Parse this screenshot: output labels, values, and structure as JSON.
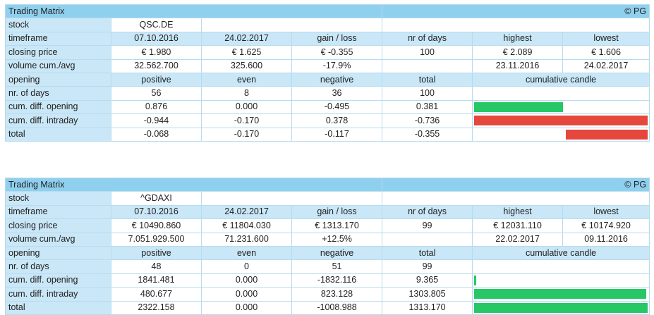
{
  "colors": {
    "header": "#8fd0ef",
    "label_bg": "#c9e7f7",
    "positive": "#27c766",
    "negative": "#e5473c"
  },
  "copyright": "© PG",
  "matrices": [
    {
      "title": "Trading Matrix",
      "stock": "QSC.DE",
      "timeframe": {
        "label": "timeframe",
        "start": "07.10.2016",
        "end": "24.02.2017",
        "gain_loss": "gain / loss",
        "nr_days": "nr of days",
        "highest": "highest",
        "lowest": "lowest"
      },
      "closing_price": {
        "label": "closing price",
        "start": "€ 1.980",
        "end": "€ 1.625",
        "gain_loss": "€ -0.355",
        "nr_days": "100",
        "highest": "€ 2.089",
        "lowest": "€ 1.606"
      },
      "volume": {
        "label": "volume cum./avg",
        "start": "32.562.700",
        "end": "325.600",
        "gain_loss": "-17.9%",
        "nr_days": "",
        "highest": "23.11.2016",
        "lowest": "24.02.2017"
      },
      "opening": {
        "label": "opening",
        "positive": "positive",
        "even": "even",
        "negative": "negative",
        "total": "total",
        "candle": "cumulative candle"
      },
      "rows": [
        {
          "label": "nr. of days",
          "positive": "56",
          "even": "8",
          "negative": "36",
          "total": "100",
          "candle": null
        },
        {
          "label": "cum. diff. opening",
          "positive": "0.876",
          "even": "0.000",
          "negative": "-0.495",
          "total": "0.381",
          "candle": {
            "start": 0.0,
            "end": 0.52,
            "direction": "positive"
          }
        },
        {
          "label": "cum. diff. intraday",
          "positive": "-0.944",
          "even": "-0.170",
          "negative": "0.378",
          "total": "-0.736",
          "candle": {
            "start": 0.0,
            "end": 1.0,
            "direction": "negative"
          }
        },
        {
          "label": "total",
          "positive": "-0.068",
          "even": "-0.170",
          "negative": "-0.117",
          "total": "-0.355",
          "candle": {
            "start": 0.52,
            "end": 1.0,
            "direction": "negative"
          }
        }
      ]
    },
    {
      "title": "Trading Matrix",
      "stock": "^GDAXI",
      "timeframe": {
        "label": "timeframe",
        "start": "07.10.2016",
        "end": "24.02.2017",
        "gain_loss": "gain / loss",
        "nr_days": "nr of days",
        "highest": "highest",
        "lowest": "lowest"
      },
      "closing_price": {
        "label": "closing price",
        "start": "€ 10490.860",
        "end": "€ 11804.030",
        "gain_loss": "€ 1313.170",
        "nr_days": "99",
        "highest": "€ 12031.110",
        "lowest": "€ 10174.920"
      },
      "volume": {
        "label": "volume cum./avg",
        "start": "7.051.929.500",
        "end": "71.231.600",
        "gain_loss": "+12.5%",
        "nr_days": "",
        "highest": "22.02.2017",
        "lowest": "09.11.2016"
      },
      "opening": {
        "label": "opening",
        "positive": "positive",
        "even": "even",
        "negative": "negative",
        "total": "total",
        "candle": "cumulative candle"
      },
      "rows": [
        {
          "label": "nr. of days",
          "positive": "48",
          "even": "0",
          "negative": "51",
          "total": "99",
          "candle": null
        },
        {
          "label": "cum. diff. opening",
          "positive": "1841.481",
          "even": "0.000",
          "negative": "-1832.116",
          "total": "9.365",
          "candle": {
            "start": 0.0,
            "end": 0.008,
            "direction": "positive"
          }
        },
        {
          "label": "cum. diff. intraday",
          "positive": "480.677",
          "even": "0.000",
          "negative": "823.128",
          "total": "1303.805",
          "candle": {
            "start": 0.0,
            "end": 0.993,
            "direction": "positive"
          }
        },
        {
          "label": "total",
          "positive": "2322.158",
          "even": "0.000",
          "negative": "-1008.988",
          "total": "1313.170",
          "candle": {
            "start": 0.0,
            "end": 1.0,
            "direction": "positive"
          }
        }
      ]
    }
  ]
}
